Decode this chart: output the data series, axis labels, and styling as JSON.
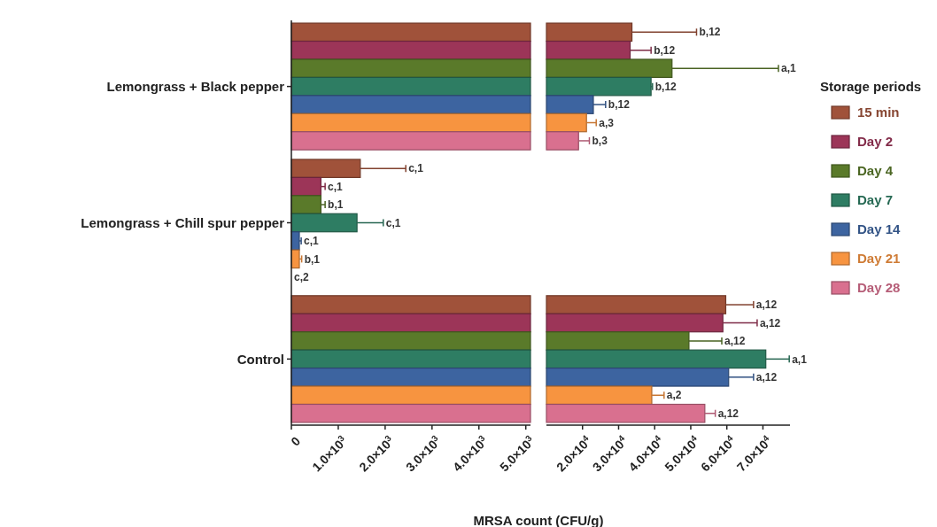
{
  "chart_data": [
    {
      "type": "bar",
      "orientation": "horizontal",
      "xlabel": "MRSA count (CFU/g)",
      "categories": [
        "Lemongrass + Black pepper",
        "Lemongrass + Chill spur pepper",
        "Control"
      ],
      "xlim": [
        0,
        5100
      ],
      "xticks": [
        0,
        {
          "value": 1000,
          "label": "1.0×10$^{3}$"
        },
        {
          "value": 2000,
          "label": "2.0×10$^{3}$"
        },
        {
          "value": 3000,
          "label": "3.0×10$^{3}$"
        },
        {
          "value": 4000,
          "label": "4.0×10$^{3}$"
        },
        {
          "value": 5000,
          "label": "5.0×10$^{3}$"
        }
      ],
      "grid": false,
      "legend": false,
      "series": [
        {
          "color": "#a0523a",
          "values": [
            5100,
            1470,
            5100
          ],
          "errors": [
            null,
            [
              1470,
              2440
            ],
            null
          ]
        },
        {
          "color": "#9c3558",
          "values": [
            5100,
            630,
            5100
          ],
          "errors": [
            null,
            [
              630,
              720
            ],
            null
          ]
        },
        {
          "color": "#5a7a2a",
          "values": [
            5100,
            630,
            5100
          ],
          "errors": [
            null,
            [
              630,
              720
            ],
            null
          ]
        },
        {
          "color": "#2e7d63",
          "values": [
            5100,
            1400,
            5100
          ],
          "errors": [
            null,
            [
              1400,
              1960
            ],
            null
          ]
        },
        {
          "color": "#3d64a0",
          "values": [
            5100,
            170,
            5100
          ],
          "errors": [
            null,
            [
              170,
              210
            ],
            null
          ]
        },
        {
          "color": "#f79440",
          "values": [
            5100,
            170,
            5100
          ],
          "errors": [
            null,
            [
              170,
              220
            ],
            null
          ]
        },
        {
          "color": "#d9708f",
          "values": [
            5100,
            0,
            5100
          ]
        }
      ],
      "annotations": [
        "c,1",
        "c,1",
        "b,1",
        "c,1",
        "c,1",
        "b,1",
        "c,2"
      ]
    },
    {
      "type": "bar",
      "orientation": "horizontal",
      "xlim": [
        10000,
        77500
      ],
      "xticks": [
        {
          "value": 20000,
          "label": "2.0×10$^{4}$"
        },
        {
          "value": 30000,
          "label": "3.0×10$^{4}$"
        },
        {
          "value": 40000,
          "label": "4.0×10$^{4}$"
        },
        {
          "value": 50000,
          "label": "5.0×10$^{4}$"
        },
        {
          "value": 60000,
          "label": "6.0×10$^{4}$"
        },
        {
          "value": 70000,
          "label": "7.0×10$^{4}$"
        }
      ],
      "tick_labels": "x",
      "grid": false,
      "legend": "right",
      "legend_title": "Storage periods",
      "series": [
        {
          "name": "15 min",
          "color": "#a0523a",
          "values": [
            33700,
            null,
            59700
          ],
          "errors": [
            [
              33700,
              51600
            ],
            null,
            [
              59700,
              67400
            ]
          ]
        },
        {
          "name": "Day 2",
          "color": "#9c3558",
          "values": [
            33200,
            null,
            58900
          ],
          "errors": [
            [
              33200,
              39000
            ],
            null,
            [
              58900,
              68400
            ]
          ]
        },
        {
          "name": "Day 4",
          "color": "#5a7a2a",
          "values": [
            44800,
            null,
            49500
          ],
          "errors": [
            [
              44800,
              74300
            ],
            null,
            [
              49500,
              58600
            ]
          ]
        },
        {
          "name": "Day 7",
          "color": "#2e7d63",
          "values": [
            39000,
            null,
            70800
          ],
          "errors": [
            [
              39000,
              39400
            ],
            null,
            [
              70800,
              77300
            ]
          ]
        },
        {
          "name": "Day 14",
          "color": "#3d64a0",
          "values": [
            23000,
            null,
            60500
          ],
          "errors": [
            [
              23000,
              26400
            ],
            null,
            [
              60500,
              67400
            ]
          ]
        },
        {
          "name": "Day 21",
          "color": "#f79440",
          "values": [
            21100,
            null,
            39200
          ],
          "errors": [
            [
              21100,
              23800
            ],
            null,
            [
              39200,
              42600
            ]
          ]
        },
        {
          "name": "Day 28",
          "color": "#d9708f",
          "values": [
            18900,
            null,
            53900
          ],
          "errors": [
            [
              18900,
              21900
            ],
            null,
            [
              53900,
              56800
            ]
          ]
        }
      ],
      "annotations": [
        "b,12",
        "b,12",
        "a,1",
        "b,12",
        "b,12",
        "a,3",
        "b,3",
        "a,12",
        "a,12",
        "a,12",
        "a,1",
        "a,12",
        "a,2",
        "a,12"
      ]
    }
  ]
}
